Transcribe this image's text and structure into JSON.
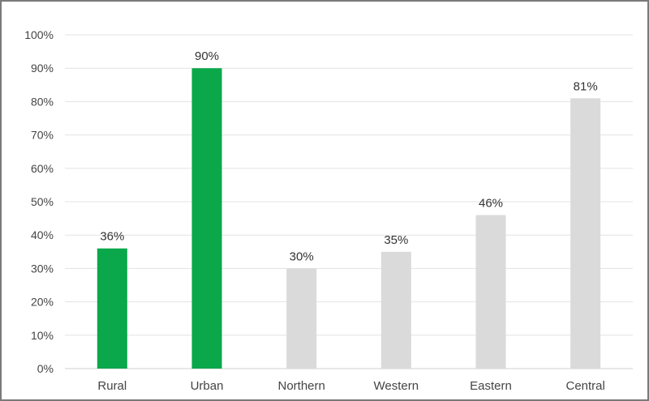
{
  "chart_data": {
    "type": "bar",
    "categories": [
      "Rural",
      "Urban",
      "Northern",
      "Western",
      "Eastern",
      "Central"
    ],
    "values": [
      36,
      90,
      30,
      35,
      46,
      81
    ],
    "data_labels": [
      "36%",
      "90%",
      "30%",
      "35%",
      "46%",
      "81%"
    ],
    "ylim": [
      0,
      100
    ],
    "yticks": [
      "0%",
      "10%",
      "20%",
      "30%",
      "40%",
      "50%",
      "60%",
      "70%",
      "80%",
      "90%",
      "100%"
    ],
    "grid": true,
    "legend": "none",
    "colors": {
      "highlight": "#0aa84a",
      "default": "#dadada",
      "grid": "#e3e3e3",
      "axis": "#cfcfcf"
    },
    "highlighted": [
      true,
      true,
      false,
      false,
      false,
      false
    ]
  }
}
